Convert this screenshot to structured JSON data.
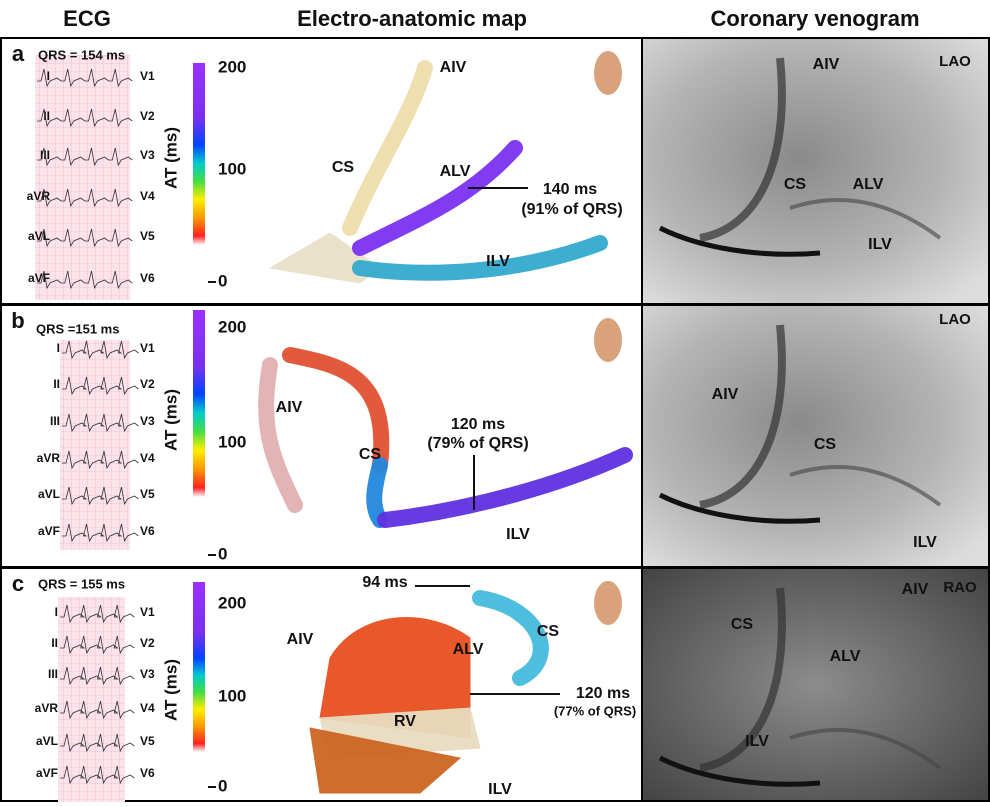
{
  "headers": [
    "ECG",
    "Electro-anatomic map",
    "Coronary venogram"
  ],
  "panels": [
    {
      "letter": "a",
      "qrs": "QRS = 154 ms",
      "leads_left": [
        "I",
        "II",
        "III",
        "aVR",
        "aVL",
        "aVF"
      ],
      "leads_right": [
        "V1",
        "V2",
        "V3",
        "V4",
        "V5",
        "V6"
      ],
      "colorbar": {
        "label": "AT (ms)",
        "ticks": [
          "200",
          "100",
          "0"
        ]
      },
      "map_labels": [
        "AIV",
        "CS",
        "ALV",
        "ILV"
      ],
      "annotations": [
        "140 ms",
        "(91% of QRS)"
      ],
      "venogram_labels": [
        "AIV",
        "CS",
        "ALV",
        "ILV"
      ],
      "view": "LAO"
    },
    {
      "letter": "b",
      "qrs": "QRS =151 ms",
      "leads_left": [
        "I",
        "II",
        "III",
        "aVR",
        "aVL",
        "aVF"
      ],
      "leads_right": [
        "V1",
        "V2",
        "V3",
        "V4",
        "V5",
        "V6"
      ],
      "colorbar": {
        "label": "AT (ms)",
        "ticks": [
          "200",
          "100",
          "0"
        ]
      },
      "map_labels": [
        "AIV",
        "CS",
        "ILV"
      ],
      "annotations": [
        "120 ms",
        "(79% of QRS)"
      ],
      "venogram_labels": [
        "AIV",
        "CS",
        "ILV"
      ],
      "view": "LAO"
    },
    {
      "letter": "c",
      "qrs": "QRS = 155 ms",
      "leads_left": [
        "I",
        "II",
        "III",
        "aVR",
        "aVL",
        "aVF"
      ],
      "leads_right": [
        "V1",
        "V2",
        "V3",
        "V4",
        "V5",
        "V6"
      ],
      "colorbar": {
        "label": "AT (ms)",
        "ticks": [
          "200",
          "100",
          "0"
        ]
      },
      "map_labels": [
        "AIV",
        "ALV",
        "CS",
        "RV",
        "ILV"
      ],
      "annotations": [
        "94 ms",
        "120 ms",
        "(77% of QRS)"
      ],
      "venogram_labels": [
        "CS",
        "AIV",
        "ALV",
        "ILV"
      ],
      "view": "RAO"
    }
  ]
}
